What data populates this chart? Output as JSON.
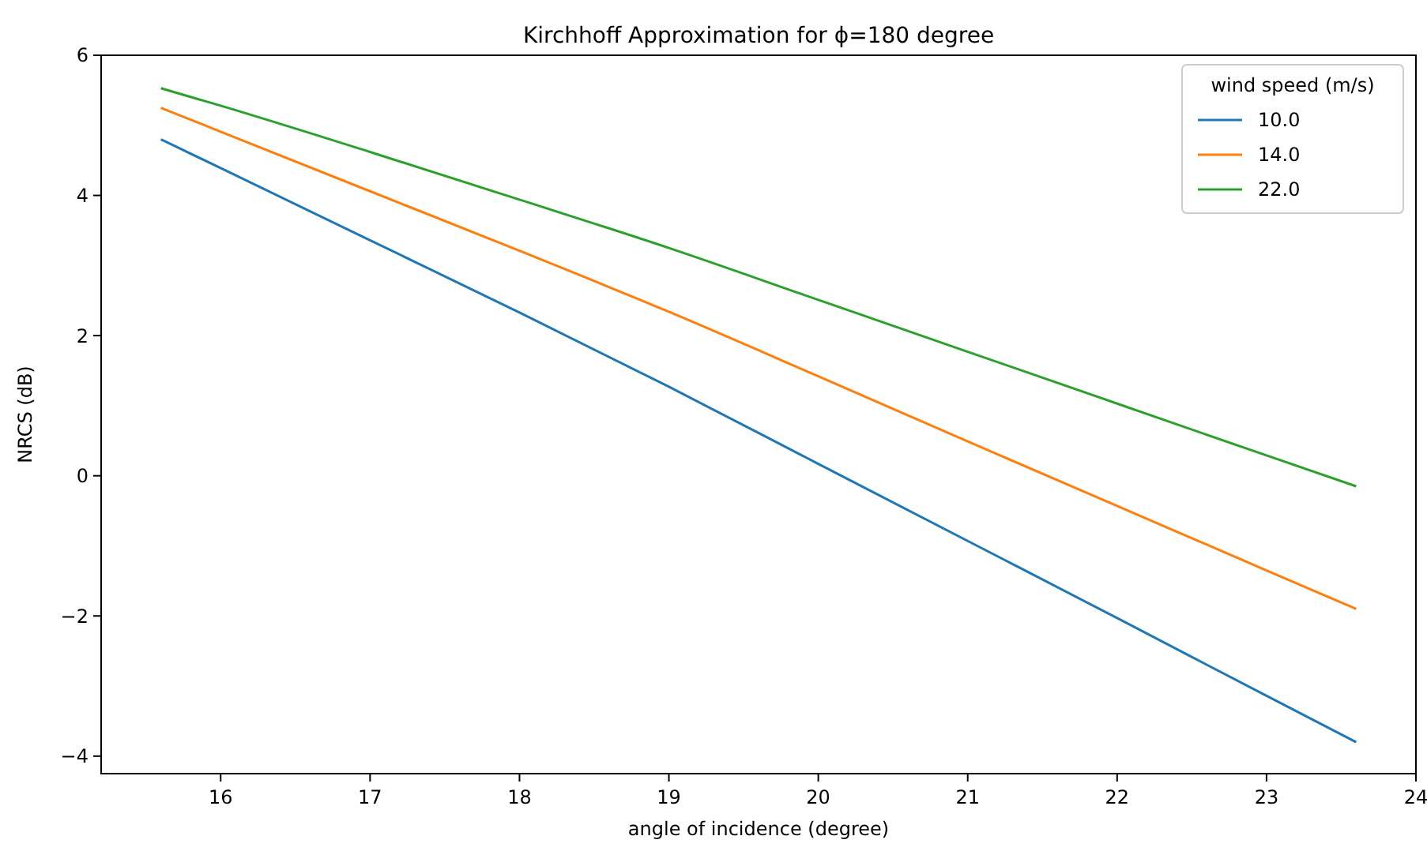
{
  "chart_data": {
    "type": "line",
    "title": "Kirchhoff Approximation for ϕ=180 degree",
    "xlabel": "angle of incidence (degree)",
    "ylabel": "NRCS (dB)",
    "legend_title": "wind speed (m/s)",
    "legend": "top right",
    "x": [
      15.6,
      16,
      17,
      18,
      19,
      20,
      21,
      22,
      23,
      23.6
    ],
    "series": [
      {
        "name": "10.0",
        "color": "#1f77b4",
        "values": [
          4.8,
          4.39,
          3.36,
          2.33,
          1.27,
          0.17,
          -0.93,
          -2.03,
          -3.14,
          -3.8
        ]
      },
      {
        "name": "14.0",
        "color": "#ff7f0e",
        "values": [
          5.25,
          4.91,
          4.06,
          3.21,
          2.34,
          1.42,
          0.49,
          -0.43,
          -1.35,
          -1.9
        ]
      },
      {
        "name": "22.0",
        "color": "#2ca02c",
        "values": [
          5.53,
          5.28,
          4.62,
          3.94,
          3.25,
          2.51,
          1.77,
          1.03,
          0.29,
          -0.15
        ]
      }
    ],
    "xlim": [
      15.2,
      24
    ],
    "xticks": [
      16,
      17,
      18,
      19,
      20,
      21,
      22,
      23,
      24
    ],
    "ylim": [
      -4.25,
      6
    ],
    "yticks": [
      {
        "value": -4,
        "label": "−4"
      },
      {
        "value": -2,
        "label": "−2"
      },
      0,
      2,
      4,
      6
    ]
  }
}
